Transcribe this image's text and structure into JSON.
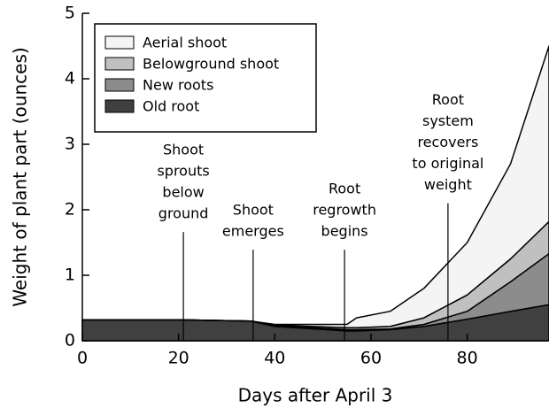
{
  "chart_data": {
    "type": "stacked_area",
    "xlabel": "Days after April 3",
    "ylabel": "Weight of plant part (ounces)",
    "x": [
      0,
      21,
      35,
      40,
      55,
      57,
      64,
      71,
      80,
      89,
      97
    ],
    "series": [
      {
        "name": "Old root",
        "color": "#404040",
        "values": [
          0.32,
          0.32,
          0.3,
          0.22,
          0.15,
          0.15,
          0.17,
          0.22,
          0.33,
          0.45,
          0.55
        ]
      },
      {
        "name": "New roots",
        "color": "#8c8c8c",
        "values": [
          0,
          0,
          0,
          0.01,
          0.02,
          0.02,
          0.01,
          0.03,
          0.12,
          0.45,
          0.78
        ]
      },
      {
        "name": "Belowground shoot",
        "color": "#c0c0c0",
        "values": [
          0,
          0,
          0,
          0.01,
          0.03,
          0.03,
          0.04,
          0.1,
          0.25,
          0.35,
          0.49
        ]
      },
      {
        "name": "Aerial shoot",
        "color": "#f4f4f4",
        "values": [
          0,
          0,
          0,
          0.01,
          0.05,
          0.15,
          0.23,
          0.45,
          0.8,
          1.45,
          2.68
        ]
      }
    ],
    "xlim": [
      0,
      97
    ],
    "ylim": [
      0,
      5
    ],
    "xticks": [
      0,
      20,
      40,
      60,
      80
    ],
    "yticks": [
      0,
      1,
      2,
      3,
      4,
      5
    ],
    "legend": "upper left",
    "annotations": [
      {
        "x": 21,
        "y": 1.66,
        "text": [
          "Shoot",
          "sprouts",
          "below",
          "ground"
        ]
      },
      {
        "x": 35.5,
        "y": 1.39,
        "text": [
          "Shoot",
          "emerges"
        ]
      },
      {
        "x": 54.5,
        "y": 1.39,
        "text": [
          "Root",
          "regrowth",
          "begins"
        ]
      },
      {
        "x": 76,
        "y": 2.1,
        "text": [
          "Root",
          "system",
          "recovers",
          "to original",
          "weight"
        ]
      }
    ]
  }
}
